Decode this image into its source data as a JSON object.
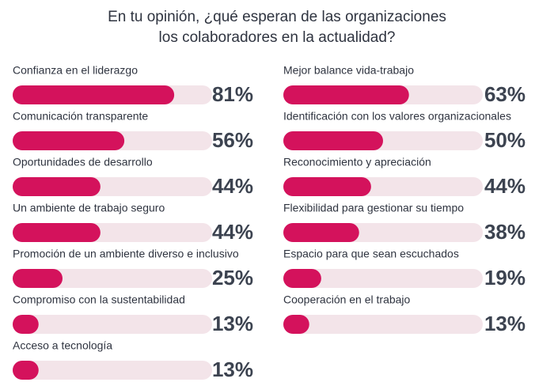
{
  "chart_data": {
    "type": "bar",
    "title": [
      "En tu opinión, ¿qué esperan de las organizaciones",
      "los colaboradores en la actualidad?"
    ],
    "categories": [
      "Confianza en el liderazgo",
      "Comunicación transparente",
      "Oportunidades de desarrollo",
      "Un ambiente de trabajo seguro",
      "Promoción de un ambiente diverso e inclusivo",
      "Compromiso con la sustentabilidad",
      "Acceso a tecnología",
      "Mejor balance vida-trabajo",
      "Identificación con los valores organizacionales",
      "Reconocimiento y apreciación",
      "Flexibilidad para gestionar su tiempo",
      "Espacio para que sean escuchados",
      "Cooperación en el trabajo"
    ],
    "values": [
      81,
      56,
      44,
      44,
      25,
      13,
      13,
      63,
      50,
      44,
      38,
      19,
      13
    ],
    "value_labels": [
      "81%",
      "56%",
      "44%",
      "44%",
      "25%",
      "13%",
      "13%",
      "63%",
      "50%",
      "44%",
      "38%",
      "19%",
      "13%"
    ],
    "color": "#d4125c",
    "xlim": [
      0,
      100
    ]
  }
}
